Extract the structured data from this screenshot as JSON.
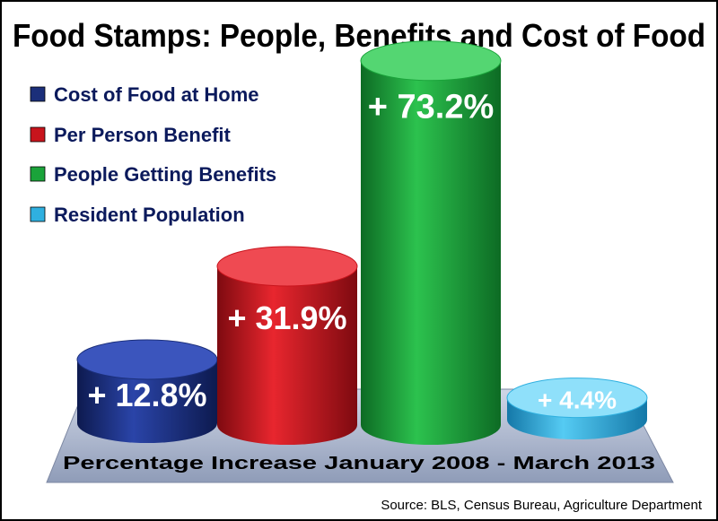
{
  "chart_data": {
    "type": "bar",
    "title": "Food Stamps: People, Benefits and Cost of Food",
    "categories": [
      "Cost of Food at Home",
      "Per Person Benefit",
      "People Getting Benefits",
      "Resident Population"
    ],
    "values": [
      12.8,
      31.9,
      73.2,
      4.4
    ],
    "value_labels": [
      "+ 12.8%",
      "+ 31.9%",
      "+ 73.2%",
      "+ 4.4%"
    ],
    "colors": [
      "#1b2f7a",
      "#c8141c",
      "#1aa33a",
      "#2fb0e0"
    ],
    "xlabel": "Percentage Increase  January 2008 - March 2013",
    "ylabel": "",
    "ylim": [
      0,
      80
    ],
    "grid": false,
    "legend": "top-left",
    "source": "Source:  BLS, Census Bureau, Agriculture Department"
  }
}
